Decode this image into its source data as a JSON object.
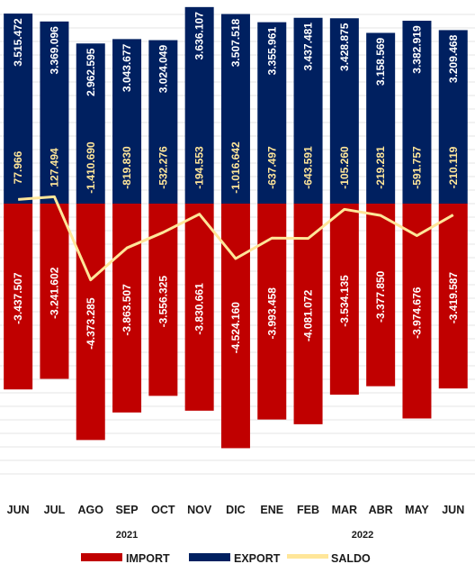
{
  "chart_data": {
    "type": "bar",
    "categories": [
      "JUN",
      "JUL",
      "AGO",
      "SEP",
      "OCT",
      "NOV",
      "DIC",
      "ENE",
      "FEB",
      "MAR",
      "ABR",
      "MAY",
      "JUN"
    ],
    "year_labels": [
      {
        "label": "2021",
        "from": 0,
        "to": 6
      },
      {
        "label": "2022",
        "from": 7,
        "to": 12
      }
    ],
    "series": [
      {
        "name": "IMPORT",
        "kind": "bar",
        "color": "#c00000",
        "values": [
          -3437507,
          -3241602,
          -4373285,
          -3863507,
          -3556325,
          -3830661,
          -4524160,
          -3993458,
          -4081072,
          -3534135,
          -3377850,
          -3974676,
          -3419587
        ],
        "labels": [
          "-3.437.507",
          "-3.241.602",
          "-4.373.285",
          "-3.863.507",
          "-3.556.325",
          "-3.830.661",
          "-4.524.160",
          "-3.993.458",
          "-4.081.072",
          "-3.534.135",
          "-3.377.850",
          "-3.974.676",
          "-3.419.587"
        ]
      },
      {
        "name": "EXPORT",
        "kind": "bar",
        "color": "#002060",
        "values": [
          3515472,
          3369096,
          2962595,
          3043677,
          3024049,
          3636107,
          3507518,
          3355961,
          3437481,
          3428875,
          3158569,
          3382919,
          3209468
        ],
        "labels": [
          "3.515.472",
          "3.369.096",
          "2.962.595",
          "3.043.677",
          "3.024.049",
          "3.636.107",
          "3.507.518",
          "3.355.961",
          "3.437.481",
          "3.428.875",
          "3.158.569",
          "3.382.919",
          "3.209.468"
        ]
      },
      {
        "name": "SALDO",
        "kind": "line",
        "color": "#ffe699",
        "values": [
          77966,
          127494,
          -1410690,
          -819830,
          -532276,
          -194553,
          -1016642,
          -637497,
          -643591,
          -105260,
          -219281,
          -591757,
          -210119
        ],
        "labels": [
          "77.966",
          "127.494",
          "-1.410.690",
          "-819.830",
          "-532.276",
          "-194.553",
          "-1.016.642",
          "-637.497",
          "-643.591",
          "-105.260",
          "-219.281",
          "-591.757",
          "-210.119"
        ]
      }
    ],
    "ylim": [
      -5000000,
      5000000
    ],
    "grid": true,
    "legend_position": "bottom",
    "colors": {
      "import": "#c00000",
      "export": "#002060",
      "saldo": "#ffe699",
      "grid": "#e6e6e6"
    }
  },
  "legend": {
    "import": "IMPORT",
    "export": "EXPORT",
    "saldo": "SALDO"
  }
}
